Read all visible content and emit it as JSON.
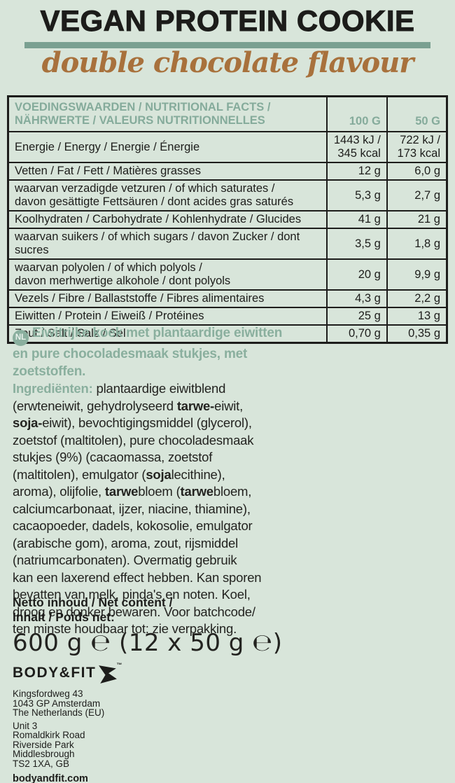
{
  "colors": {
    "background": "#d8e5da",
    "accent_teal": "#7aa091",
    "teal_text": "#85ab9b",
    "brown_script": "#a8713c",
    "text_dark": "#1d1d1b"
  },
  "header": {
    "title": "VEGAN PROTEIN COOKIE",
    "subtitle": "double chocolate flavour"
  },
  "nutrition_table": {
    "title": "VOEDINGSWAARDEN / NUTRITIONAL FACTS /\nNÄHRWERTE / VALEURS NUTRITIONNELLES",
    "col_100g": "100 G",
    "col_50g": "50 G",
    "rows": [
      {
        "label": "Energie / Energy / Energie / Énergie",
        "per_100g": "1443 kJ /\n345 kcal",
        "per_50g": "722 kJ /\n173 kcal",
        "bold": true
      },
      {
        "label": "Vetten / Fat / Fett / Matières grasses",
        "per_100g": "12 g",
        "per_50g": "6,0 g",
        "bold": true
      },
      {
        "label": "waarvan verzadigde vetzuren / of which saturates /\ndavon gesättigte Fettsäuren / dont acides gras saturés",
        "per_100g": "5,3 g",
        "per_50g": "2,7 g",
        "bold": false
      },
      {
        "label": "Koolhydraten / Carbohydrate / Kohlenhydrate / Glucides",
        "per_100g": "41 g",
        "per_50g": "21 g",
        "bold": true
      },
      {
        "label": "waarvan suikers / of which sugars / davon Zucker / dont sucres",
        "per_100g": "3,5 g",
        "per_50g": "1,8 g",
        "bold": false
      },
      {
        "label": "waarvan polyolen / of which polyols /\ndavon merhwertige alkohole / dont polyols",
        "per_100g": "20 g",
        "per_50g": "9,9 g",
        "bold": false
      },
      {
        "label": "Vezels / Fibre / Ballaststoffe / Fibres alimentaires",
        "per_100g": "4,3 g",
        "per_50g": "2,2 g",
        "bold": true
      },
      {
        "label": "Eiwitten / Protein / Eiweiß / Protéines",
        "per_100g": "25 g",
        "per_50g": "13 g",
        "bold": true
      },
      {
        "label": "Zout / Salt / Salz / Sel",
        "per_100g": "0,70 g",
        "per_50g": "0,35 g",
        "bold": true
      }
    ]
  },
  "description": {
    "badge": "NL",
    "intro": "Eiwitrijke koek met plantaardige eiwitten\nen pure chocoladesmaak stukjes, met\nzoetstoffen.",
    "ingredients_label": "Ingrediënten:",
    "ingredients_segments": [
      {
        "t": " plantaardige eiwitblend\n(erwteneiwit, gehydrolyseerd ",
        "b": false
      },
      {
        "t": "tarwe-",
        "b": true
      },
      {
        "t": "eiwit,\n",
        "b": false
      },
      {
        "t": "soja-",
        "b": true
      },
      {
        "t": "eiwit), bevochtigingsmiddel (glycerol),\nzoetstof (maltitolen), pure chocoladesmaak\nstukjes (9%) (cacaomassa, zoetstof\n(maltitolen), emulgator (",
        "b": false
      },
      {
        "t": "soja",
        "b": true
      },
      {
        "t": "lecithine),\naroma), olijfolie, ",
        "b": false
      },
      {
        "t": "tarwe",
        "b": true
      },
      {
        "t": "bloem (",
        "b": false
      },
      {
        "t": "tarwe",
        "b": true
      },
      {
        "t": "bloem,\ncalciumcarbonaat, ijzer, niacine, thiamine),\ncacaopoeder, dadels, kokosolie, emulgator\n(arabische gom), aroma, zout, rijsmiddel\n(natriumcarbonaten). Overmatig gebruik\nkan een laxerend effect hebben. Kan sporen\nbevatten van melk, pinda's en noten. Koel,\ndroog en donker bewaren. Voor batchcode/\nten minste houdbaar tot: zie verpakking.",
        "b": false
      }
    ]
  },
  "net_content": {
    "label": "Netto inhoud / Net content /\nInhalt / Poids net:",
    "value": "600 g ℮ (12 x 50 g ℮)"
  },
  "footer": {
    "brand": "BODY&FIT",
    "trademark": "™",
    "address_nl": [
      "Kingsfordweg 43",
      "1043 GP Amsterdam",
      "The Netherlands (EU)"
    ],
    "address_gb": [
      "Unit 3",
      "Romaldkirk Road",
      "Riverside Park",
      "Middlesbrough",
      "TS2 1XA, GB"
    ],
    "website": "bodyandfit.com"
  }
}
